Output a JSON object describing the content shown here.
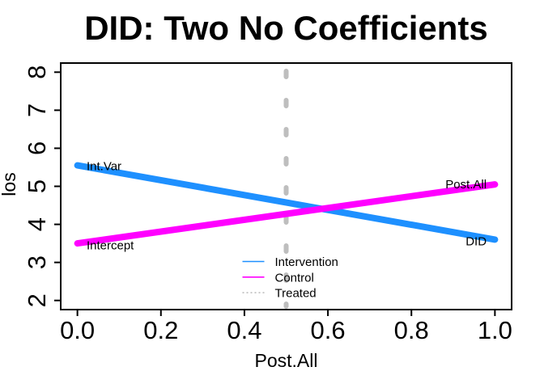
{
  "chart_data": {
    "type": "line",
    "title": "DID: Two No Coefficients",
    "xlabel": "Post.All",
    "ylabel": "los",
    "xlim": [
      0,
      1
    ],
    "ylim": [
      2,
      8
    ],
    "usr_x": [
      -0.04,
      1.04
    ],
    "usr_y": [
      1.76,
      8.24
    ],
    "grid": false,
    "x_ticks": [
      {
        "value": 0.0,
        "label": "0.0"
      },
      {
        "value": 0.2,
        "label": "0.2"
      },
      {
        "value": 0.4,
        "label": "0.4"
      },
      {
        "value": 0.6,
        "label": "0.6"
      },
      {
        "value": 0.8,
        "label": "0.8"
      },
      {
        "value": 1.0,
        "label": "1.0"
      }
    ],
    "y_ticks": [
      {
        "value": 2,
        "label": "2"
      },
      {
        "value": 3,
        "label": "3"
      },
      {
        "value": 4,
        "label": "4"
      },
      {
        "value": 5,
        "label": "5"
      },
      {
        "value": 6,
        "label": "6"
      },
      {
        "value": 7,
        "label": "7"
      },
      {
        "value": 8,
        "label": "8"
      }
    ],
    "series": [
      {
        "name": "Intervention",
        "kind": "line",
        "color": "#1E90FF",
        "width": 8,
        "x": [
          0,
          1
        ],
        "y": [
          5.55,
          3.6
        ]
      },
      {
        "name": "Control",
        "kind": "line",
        "color": "#FF00FF",
        "width": 8,
        "x": [
          0,
          1
        ],
        "y": [
          3.5,
          5.05
        ]
      },
      {
        "name": "Treated",
        "kind": "vline",
        "color": "#BEBEBE",
        "width": 6,
        "style": "dashed",
        "x": 0.5
      }
    ],
    "annotations": [
      {
        "text": "Int.Var",
        "x": 0.022,
        "y": 5.53,
        "anchor": "start"
      },
      {
        "text": "Intercept",
        "x": 0.022,
        "y": 3.45,
        "anchor": "start"
      },
      {
        "text": "Post.All",
        "x": 0.98,
        "y": 5.05,
        "anchor": "end"
      },
      {
        "text": "DID",
        "x": 0.98,
        "y": 3.56,
        "anchor": "end"
      }
    ],
    "legend": {
      "position": "bottom-center",
      "entries": [
        {
          "label": "Intervention",
          "color": "#1E90FF",
          "style": "solid"
        },
        {
          "label": "Control",
          "color": "#FF00FF",
          "style": "solid"
        },
        {
          "label": "Treated",
          "color": "#BEBEBE",
          "style": "dotted"
        }
      ]
    },
    "colors": {
      "axis": "#000000",
      "background": "#ffffff",
      "intervention": "#1E90FF",
      "control": "#FF00FF",
      "treated": "#BEBEBE"
    }
  }
}
